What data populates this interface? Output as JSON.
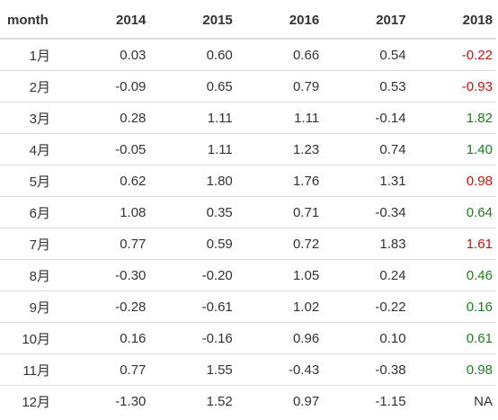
{
  "table": {
    "columns": [
      "month",
      "2014",
      "2015",
      "2016",
      "2017",
      "2018"
    ],
    "rows": [
      {
        "month": "1月",
        "values": [
          "0.03",
          "0.60",
          "0.66",
          "0.54",
          "-0.22"
        ],
        "status": "neg"
      },
      {
        "month": "2月",
        "values": [
          "-0.09",
          "0.65",
          "0.79",
          "0.53",
          "-0.93"
        ],
        "status": "neg"
      },
      {
        "month": "3月",
        "values": [
          "0.28",
          "1.11",
          "1.11",
          "-0.14",
          "1.82"
        ],
        "status": "pos"
      },
      {
        "month": "4月",
        "values": [
          "-0.05",
          "1.11",
          "1.23",
          "0.74",
          "1.40"
        ],
        "status": "pos"
      },
      {
        "month": "5月",
        "values": [
          "0.62",
          "1.80",
          "1.76",
          "1.31",
          "0.98"
        ],
        "status": "neg"
      },
      {
        "month": "6月",
        "values": [
          "1.08",
          "0.35",
          "0.71",
          "-0.34",
          "0.64"
        ],
        "status": "pos"
      },
      {
        "month": "7月",
        "values": [
          "0.77",
          "0.59",
          "0.72",
          "1.83",
          "1.61"
        ],
        "status": "neg"
      },
      {
        "month": "8月",
        "values": [
          "-0.30",
          "-0.20",
          "1.05",
          "0.24",
          "0.46"
        ],
        "status": "pos"
      },
      {
        "month": "9月",
        "values": [
          "-0.28",
          "-0.61",
          "1.02",
          "-0.22",
          "0.16"
        ],
        "status": "pos"
      },
      {
        "month": "10月",
        "values": [
          "0.16",
          "-0.16",
          "0.96",
          "0.10",
          "0.61"
        ],
        "status": "pos"
      },
      {
        "month": "11月",
        "values": [
          "0.77",
          "1.55",
          "-0.43",
          "-0.38",
          "0.98"
        ],
        "status": "pos"
      },
      {
        "month": "12月",
        "values": [
          "-1.30",
          "1.52",
          "0.97",
          "-1.15",
          "NA"
        ],
        "status": "none"
      }
    ]
  },
  "colors": {
    "positive": "#1e7e1e",
    "negative": "#cc1111",
    "default": "#333333",
    "rule": "#dddddd"
  }
}
